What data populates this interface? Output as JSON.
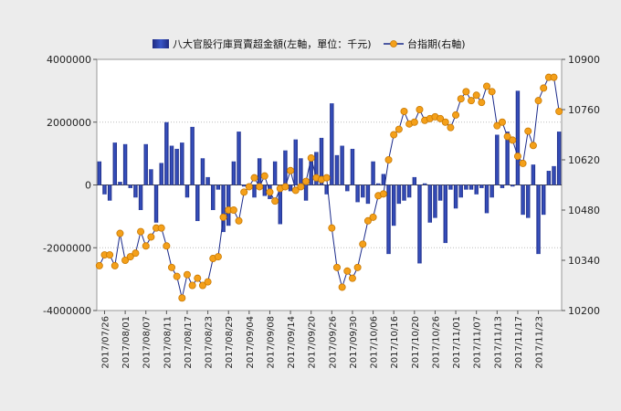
{
  "chart_data": {
    "type": "bar",
    "title": "",
    "legend_position": "top-center",
    "grid": "horizontal-dotted",
    "x_tick_labels": [
      "2017/07/26",
      "2017/08/01",
      "2017/08/07",
      "2017/08/11",
      "2017/08/17",
      "2017/08/23",
      "2017/08/29",
      "2017/09/04",
      "2017/09/08",
      "2017/09/14",
      "2017/09/20",
      "2017/09/26",
      "2017/09/30",
      "2017/10/06",
      "2017/10/16",
      "2017/10/20",
      "2017/10/26",
      "2017/11/01",
      "2017/11/07",
      "2017/11/13",
      "2017/11/17",
      "2017/11/23"
    ],
    "x_tick_every": 4,
    "y_left": {
      "min": -4000000,
      "max": 4000000,
      "ticks": [
        "4000000",
        "2000000",
        "0",
        "-2000000",
        "-4000000"
      ]
    },
    "y_right": {
      "min": 10200,
      "max": 10900,
      "ticks": [
        "10900",
        "10760",
        "10620",
        "10480",
        "10340",
        "10200"
      ]
    },
    "series": [
      {
        "name": "八大官股行庫買賣超金額(左軸，單位：千元)",
        "type": "bar",
        "axis": "left",
        "color": "#2f3f9e",
        "values": [
          750000,
          -300000,
          -500000,
          1350000,
          100000,
          1300000,
          -100000,
          -400000,
          -800000,
          1300000,
          500000,
          -1200000,
          700000,
          2000000,
          1250000,
          1150000,
          1350000,
          -400000,
          1850000,
          -1150000,
          850000,
          250000,
          -800000,
          -150000,
          -1500000,
          -1300000,
          750000,
          1700000,
          -50000,
          -100000,
          -400000,
          850000,
          -350000,
          -450000,
          750000,
          -1250000,
          1100000,
          -200000,
          1450000,
          850000,
          -500000,
          950000,
          1050000,
          1500000,
          -300000,
          2600000,
          950000,
          1250000,
          -200000,
          1150000,
          -550000,
          -400000,
          -600000,
          750000,
          50000,
          350000,
          -2200000,
          -1300000,
          -600000,
          -500000,
          -400000,
          250000,
          -2500000,
          50000,
          -1200000,
          -1050000,
          -500000,
          -1850000,
          -150000,
          -750000,
          -400000,
          -150000,
          -150000,
          -300000,
          -100000,
          -900000,
          -400000,
          1600000,
          -100000,
          1700000,
          -50000,
          3000000,
          -950000,
          -1050000,
          650000,
          -2200000,
          -950000,
          450000,
          600000,
          1700000
        ]
      },
      {
        "name": "台指期(右軸)",
        "type": "line",
        "axis": "right",
        "color": "#1a2a8a",
        "marker_color": "#f4a01a",
        "values": [
          10325,
          10355,
          10355,
          10325,
          10415,
          10340,
          10350,
          10360,
          10420,
          10380,
          10405,
          10430,
          10430,
          10380,
          10320,
          10295,
          10235,
          10300,
          10270,
          10290,
          10270,
          10280,
          10345,
          10350,
          10460,
          10480,
          10480,
          10450,
          10530,
          10545,
          10570,
          10545,
          10575,
          10530,
          10505,
          10540,
          10545,
          10590,
          10535,
          10545,
          10560,
          10625,
          10570,
          10565,
          10570,
          10430,
          10320,
          10265,
          10310,
          10290,
          10320,
          10385,
          10450,
          10460,
          10520,
          10525,
          10620,
          10690,
          10705,
          10755,
          10720,
          10725,
          10760,
          10730,
          10735,
          10740,
          10735,
          10725,
          10710,
          10745,
          10790,
          10810,
          10785,
          10800,
          10780,
          10825,
          10810,
          10715,
          10725,
          10685,
          10675,
          10630,
          10610,
          10700,
          10660,
          10785,
          10820,
          10850,
          10850,
          10755
        ]
      }
    ]
  }
}
